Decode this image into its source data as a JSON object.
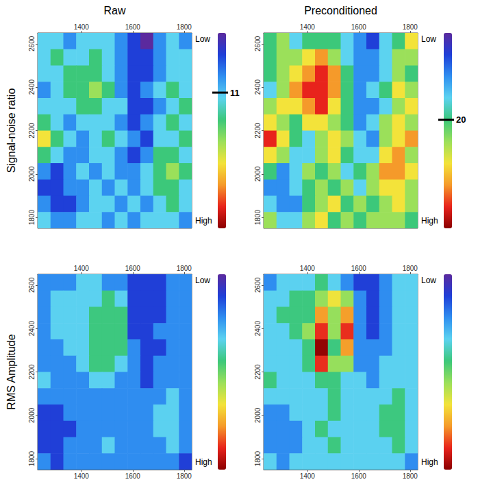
{
  "column_titles": [
    "Raw",
    "Preconditioned"
  ],
  "row_titles": [
    "Signal-noise ratio",
    "RMS Amplitude"
  ],
  "chart_data": [
    {
      "type": "heatmap",
      "x": [
        1255,
        1305,
        1355,
        1405,
        1455,
        1505,
        1555,
        1605,
        1655,
        1705,
        1755,
        1805
      ],
      "y": [
        2612.5,
        2537.5,
        2462.5,
        2387.5,
        2312.5,
        2237.5,
        2162.5,
        2087.5,
        2012.5,
        1937.5,
        1862.5,
        1787.5
      ],
      "values": [
        [
          12,
          12,
          8,
          12,
          12,
          12,
          8,
          4,
          0,
          8,
          12,
          8
        ],
        [
          12,
          16,
          12,
          12,
          16,
          12,
          8,
          4,
          4,
          8,
          12,
          12
        ],
        [
          12,
          12,
          16,
          16,
          16,
          12,
          8,
          4,
          4,
          8,
          12,
          12
        ],
        [
          8,
          12,
          16,
          16,
          20,
          16,
          8,
          4,
          8,
          12,
          16,
          12
        ],
        [
          12,
          12,
          12,
          16,
          16,
          12,
          12,
          4,
          4,
          8,
          12,
          16
        ],
        [
          16,
          12,
          8,
          12,
          12,
          12,
          8,
          4,
          8,
          12,
          16,
          12
        ],
        [
          24,
          16,
          12,
          8,
          12,
          16,
          12,
          8,
          4,
          12,
          12,
          16
        ],
        [
          16,
          12,
          8,
          8,
          12,
          12,
          8,
          4,
          8,
          16,
          16,
          12
        ],
        [
          8,
          4,
          8,
          12,
          8,
          12,
          8,
          8,
          12,
          16,
          20,
          16
        ],
        [
          4,
          4,
          8,
          8,
          12,
          8,
          12,
          8,
          12,
          16,
          16,
          12
        ],
        [
          8,
          4,
          4,
          8,
          12,
          12,
          8,
          12,
          8,
          12,
          16,
          12
        ],
        [
          12,
          8,
          8,
          12,
          12,
          8,
          12,
          8,
          12,
          12,
          12,
          8
        ]
      ],
      "xlim": [
        1230,
        1830
      ],
      "xticks": [
        1400,
        1600,
        1800
      ],
      "ylim": [
        1750,
        2650
      ],
      "yticks": [
        1800,
        2000,
        2200,
        2400,
        2600
      ],
      "color_range": [
        0,
        36
      ],
      "color_labels": [
        "Low",
        "High"
      ],
      "colorbar_marker": 11
    },
    {
      "type": "heatmap",
      "x": [
        1255,
        1305,
        1355,
        1405,
        1455,
        1505,
        1555,
        1605,
        1655,
        1705,
        1755,
        1805
      ],
      "y": [
        2612.5,
        2537.5,
        2462.5,
        2387.5,
        2312.5,
        2237.5,
        2162.5,
        2087.5,
        2012.5,
        1937.5,
        1862.5,
        1787.5
      ],
      "values": [
        [
          20,
          25,
          15,
          20,
          20,
          20,
          15,
          10,
          5,
          15,
          20,
          30
        ],
        [
          20,
          25,
          25,
          30,
          35,
          25,
          15,
          10,
          10,
          15,
          25,
          25
        ],
        [
          20,
          25,
          30,
          35,
          40,
          35,
          20,
          10,
          10,
          15,
          25,
          20
        ],
        [
          15,
          25,
          35,
          40,
          40,
          35,
          20,
          10,
          15,
          20,
          30,
          25
        ],
        [
          25,
          30,
          30,
          35,
          40,
          30,
          20,
          10,
          10,
          15,
          25,
          30
        ],
        [
          30,
          25,
          20,
          30,
          30,
          25,
          20,
          10,
          15,
          25,
          30,
          25
        ],
        [
          40,
          30,
          20,
          15,
          25,
          30,
          25,
          15,
          10,
          25,
          30,
          35
        ],
        [
          30,
          25,
          15,
          15,
          25,
          30,
          20,
          15,
          15,
          30,
          35,
          25
        ],
        [
          20,
          10,
          15,
          25,
          20,
          25,
          15,
          20,
          25,
          35,
          35,
          30
        ],
        [
          10,
          10,
          15,
          20,
          25,
          20,
          25,
          15,
          25,
          30,
          30,
          25
        ],
        [
          15,
          10,
          10,
          20,
          25,
          30,
          20,
          25,
          20,
          25,
          30,
          25
        ],
        [
          25,
          15,
          15,
          25,
          30,
          20,
          25,
          20,
          25,
          25,
          25,
          20
        ]
      ],
      "xlim": [
        1230,
        1830
      ],
      "xticks": [
        1400,
        1600,
        1800
      ],
      "ylim": [
        1750,
        2650
      ],
      "yticks": [
        1800,
        2000,
        2200,
        2400,
        2600
      ],
      "color_range": [
        0,
        45
      ],
      "color_labels": [
        "Low",
        "High"
      ],
      "colorbar_marker": 20
    },
    {
      "type": "heatmap",
      "x": [
        1255,
        1305,
        1355,
        1405,
        1455,
        1505,
        1555,
        1605,
        1655,
        1705,
        1755,
        1805
      ],
      "y": [
        2612.5,
        2537.5,
        2462.5,
        2387.5,
        2312.5,
        2237.5,
        2162.5,
        2087.5,
        2012.5,
        1937.5,
        1862.5,
        1787.5
      ],
      "values": [
        [
          22,
          22,
          22,
          33,
          33,
          22,
          22,
          11,
          11,
          11,
          22,
          22
        ],
        [
          22,
          33,
          33,
          33,
          33,
          44,
          33,
          11,
          11,
          11,
          22,
          22
        ],
        [
          22,
          33,
          33,
          33,
          44,
          44,
          44,
          11,
          11,
          11,
          22,
          22
        ],
        [
          22,
          33,
          33,
          33,
          44,
          44,
          44,
          11,
          11,
          22,
          22,
          22
        ],
        [
          22,
          22,
          33,
          33,
          44,
          44,
          44,
          22,
          11,
          11,
          22,
          22
        ],
        [
          22,
          22,
          22,
          33,
          44,
          44,
          33,
          22,
          11,
          22,
          22,
          22
        ],
        [
          33,
          22,
          22,
          22,
          33,
          33,
          22,
          22,
          11,
          22,
          22,
          22
        ],
        [
          22,
          22,
          22,
          22,
          22,
          22,
          22,
          22,
          22,
          22,
          33,
          22
        ],
        [
          11,
          11,
          22,
          22,
          22,
          22,
          22,
          22,
          22,
          33,
          33,
          22
        ],
        [
          11,
          11,
          11,
          22,
          22,
          22,
          22,
          22,
          22,
          33,
          33,
          22
        ],
        [
          11,
          11,
          22,
          22,
          22,
          33,
          22,
          22,
          22,
          22,
          33,
          22
        ],
        [
          22,
          11,
          22,
          22,
          22,
          22,
          22,
          22,
          22,
          22,
          22,
          11
        ]
      ],
      "xlim": [
        1230,
        1830
      ],
      "xticks": [
        1400,
        1600,
        1800
      ],
      "ylim": [
        1750,
        2650
      ],
      "yticks": [
        1800,
        2000,
        2200,
        2400,
        2600
      ],
      "color_range": [
        0,
        100
      ],
      "color_labels": [
        "Low",
        "High"
      ]
    },
    {
      "type": "heatmap",
      "x": [
        1255,
        1305,
        1355,
        1405,
        1455,
        1505,
        1555,
        1605,
        1655,
        1705,
        1755,
        1805
      ],
      "y": [
        2612.5,
        2537.5,
        2462.5,
        2387.5,
        2312.5,
        2237.5,
        2162.5,
        2087.5,
        2012.5,
        1937.5,
        1862.5,
        1787.5
      ],
      "values": [
        [
          22,
          33,
          33,
          33,
          44,
          33,
          22,
          11,
          11,
          22,
          33,
          33
        ],
        [
          33,
          33,
          44,
          44,
          55,
          66,
          55,
          22,
          11,
          22,
          33,
          33
        ],
        [
          33,
          44,
          44,
          44,
          77,
          55,
          77,
          22,
          11,
          22,
          33,
          33
        ],
        [
          33,
          33,
          44,
          55,
          88,
          55,
          88,
          22,
          11,
          22,
          33,
          33
        ],
        [
          33,
          33,
          33,
          44,
          99,
          44,
          77,
          22,
          22,
          22,
          33,
          33
        ],
        [
          33,
          33,
          33,
          44,
          88,
          55,
          55,
          22,
          22,
          33,
          33,
          33
        ],
        [
          44,
          33,
          33,
          33,
          44,
          44,
          33,
          33,
          22,
          33,
          33,
          33
        ],
        [
          33,
          33,
          33,
          33,
          33,
          44,
          33,
          33,
          33,
          33,
          44,
          33
        ],
        [
          22,
          22,
          33,
          33,
          33,
          44,
          33,
          33,
          33,
          44,
          44,
          33
        ],
        [
          22,
          22,
          22,
          33,
          44,
          33,
          33,
          33,
          33,
          44,
          44,
          33
        ],
        [
          22,
          22,
          22,
          33,
          33,
          44,
          33,
          33,
          33,
          33,
          44,
          33
        ],
        [
          33,
          22,
          33,
          33,
          33,
          33,
          33,
          33,
          33,
          33,
          33,
          22
        ]
      ],
      "xlim": [
        1230,
        1830
      ],
      "xticks": [
        1400,
        1600,
        1800
      ],
      "ylim": [
        1750,
        2650
      ],
      "yticks": [
        1800,
        2000,
        2200,
        2400,
        2600
      ],
      "color_range": [
        0,
        100
      ],
      "color_labels": [
        "Low",
        "High"
      ]
    }
  ]
}
